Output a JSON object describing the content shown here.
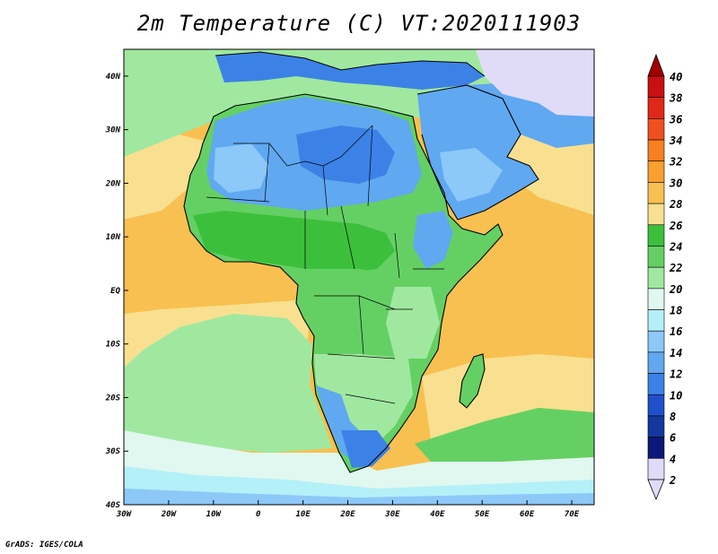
{
  "title": "2m Temperature (C) VT:2020111903",
  "credit": "GrADS: IGES/COLA",
  "map": {
    "lon_range": [
      -30,
      75
    ],
    "lat_range": [
      -40,
      45
    ],
    "x_ticks": [
      {
        "lon": -30,
        "label": "30W"
      },
      {
        "lon": -20,
        "label": "20W"
      },
      {
        "lon": -10,
        "label": "10W"
      },
      {
        "lon": 0,
        "label": "0"
      },
      {
        "lon": 10,
        "label": "10E"
      },
      {
        "lon": 20,
        "label": "20E"
      },
      {
        "lon": 30,
        "label": "30E"
      },
      {
        "lon": 40,
        "label": "40E"
      },
      {
        "lon": 50,
        "label": "50E"
      },
      {
        "lon": 60,
        "label": "60E"
      },
      {
        "lon": 70,
        "label": "70E"
      }
    ],
    "y_ticks": [
      {
        "lat": 40,
        "label": "40N"
      },
      {
        "lat": 30,
        "label": "30N"
      },
      {
        "lat": 20,
        "label": "20N"
      },
      {
        "lat": 10,
        "label": "10N"
      },
      {
        "lat": 0,
        "label": "EQ"
      },
      {
        "lat": -10,
        "label": "10S"
      },
      {
        "lat": -20,
        "label": "20S"
      },
      {
        "lat": -30,
        "label": "30S"
      },
      {
        "lat": -40,
        "label": "40S"
      }
    ]
  },
  "colorbar": {
    "levels": [
      {
        "label": "40",
        "color": "#a00000"
      },
      {
        "label": "38",
        "color": "#c81010"
      },
      {
        "label": "36",
        "color": "#e02818"
      },
      {
        "label": "34",
        "color": "#f05020"
      },
      {
        "label": "32",
        "color": "#f88020"
      },
      {
        "label": "30",
        "color": "#f8a030"
      },
      {
        "label": "28",
        "color": "#f8c050"
      },
      {
        "label": "26",
        "color": "#f8e090"
      },
      {
        "label": "24",
        "color": "#3cc03c"
      },
      {
        "label": "22",
        "color": "#64d064"
      },
      {
        "label": "20",
        "color": "#a0e8a0"
      },
      {
        "label": "18",
        "color": "#e0f8f0"
      },
      {
        "label": "16",
        "color": "#b4f0f8"
      },
      {
        "label": "14",
        "color": "#8cc8f8"
      },
      {
        "label": "12",
        "color": "#60a8f0"
      },
      {
        "label": "10",
        "color": "#3c82e6"
      },
      {
        "label": "8",
        "color": "#2050c8"
      },
      {
        "label": "6",
        "color": "#1438a0"
      },
      {
        "label": "4",
        "color": "#0c1878"
      },
      {
        "label": "2",
        "color": "#e0dcf8"
      }
    ],
    "top_arrow_color": "#a00000",
    "bottom_arrow_color": "#e0dcf8"
  },
  "field_colors": {
    "ocean_warm": "#f8c050",
    "ocean_mild": "#f8e090",
    "ocean_cool": "#a0e8a0",
    "ocean_cold": "#e0f8f0",
    "land_green": "#64d064",
    "land_dark_green": "#3cc03c",
    "land_blue": "#60a8f0",
    "land_light_blue": "#8cc8f8",
    "land_dark_blue": "#3c82e6",
    "high_cold": "#e0dcf8",
    "south_cold": "#b4f0f8",
    "south_edge": "#8cc8f8",
    "coast": "#000000"
  }
}
